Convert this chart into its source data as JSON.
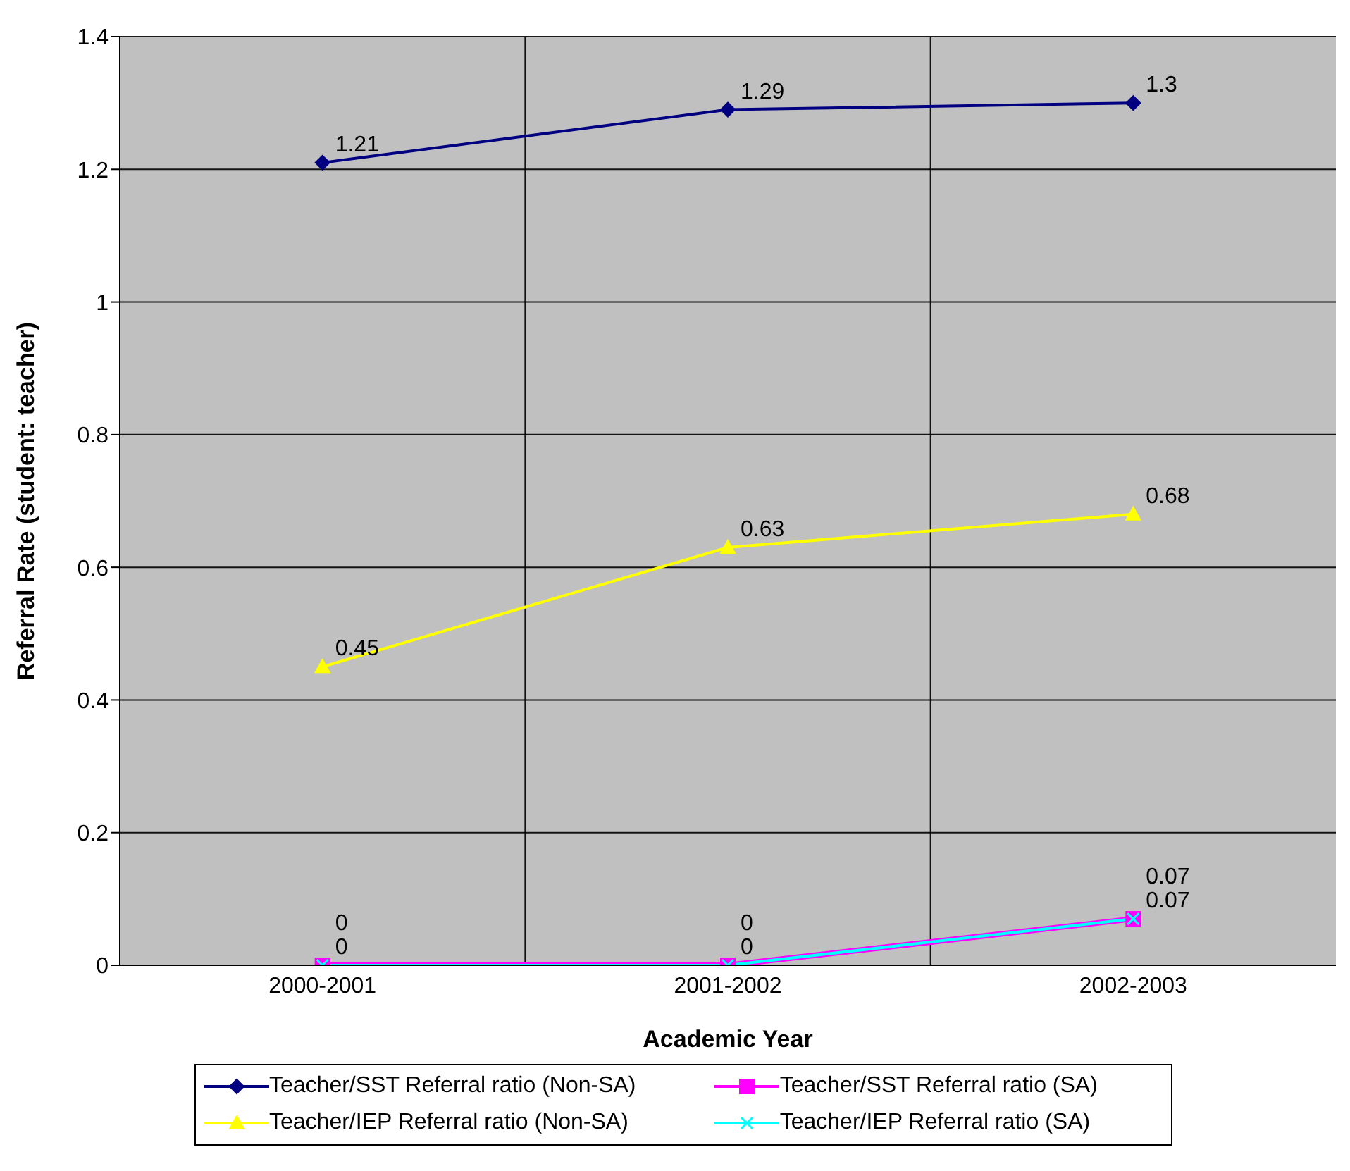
{
  "chart_data": {
    "type": "line",
    "xlabel": "Academic Year",
    "ylabel": "Referral Rate (student: teacher)",
    "categories": [
      "2000-2001",
      "2001-2002",
      "2002-2003"
    ],
    "series": [
      {
        "name": "Teacher/SST Referral ratio (Non-SA)",
        "color": "#000080",
        "marker": "diamond",
        "values": [
          1.21,
          1.29,
          1.3
        ]
      },
      {
        "name": "Teacher/SST Referral ratio (SA)",
        "color": "#ff00ff",
        "marker": "square",
        "values": [
          0,
          0,
          0.07
        ]
      },
      {
        "name": "Teacher/IEP Referral ratio (Non-SA)",
        "color": "#ffff00",
        "marker": "triangle",
        "values": [
          0.45,
          0.63,
          0.68
        ]
      },
      {
        "name": "Teacher/IEP Referral ratio (SA)",
        "color": "#00ffff",
        "marker": "cross",
        "values": [
          0,
          0,
          0.07
        ]
      }
    ],
    "ylim": [
      0,
      1.4
    ],
    "yticks": [
      0,
      0.2,
      0.4,
      0.6,
      0.8,
      1,
      1.2,
      1.4
    ],
    "grid": true,
    "legend": "bottom",
    "data_labels": true,
    "line_style": "solid"
  }
}
